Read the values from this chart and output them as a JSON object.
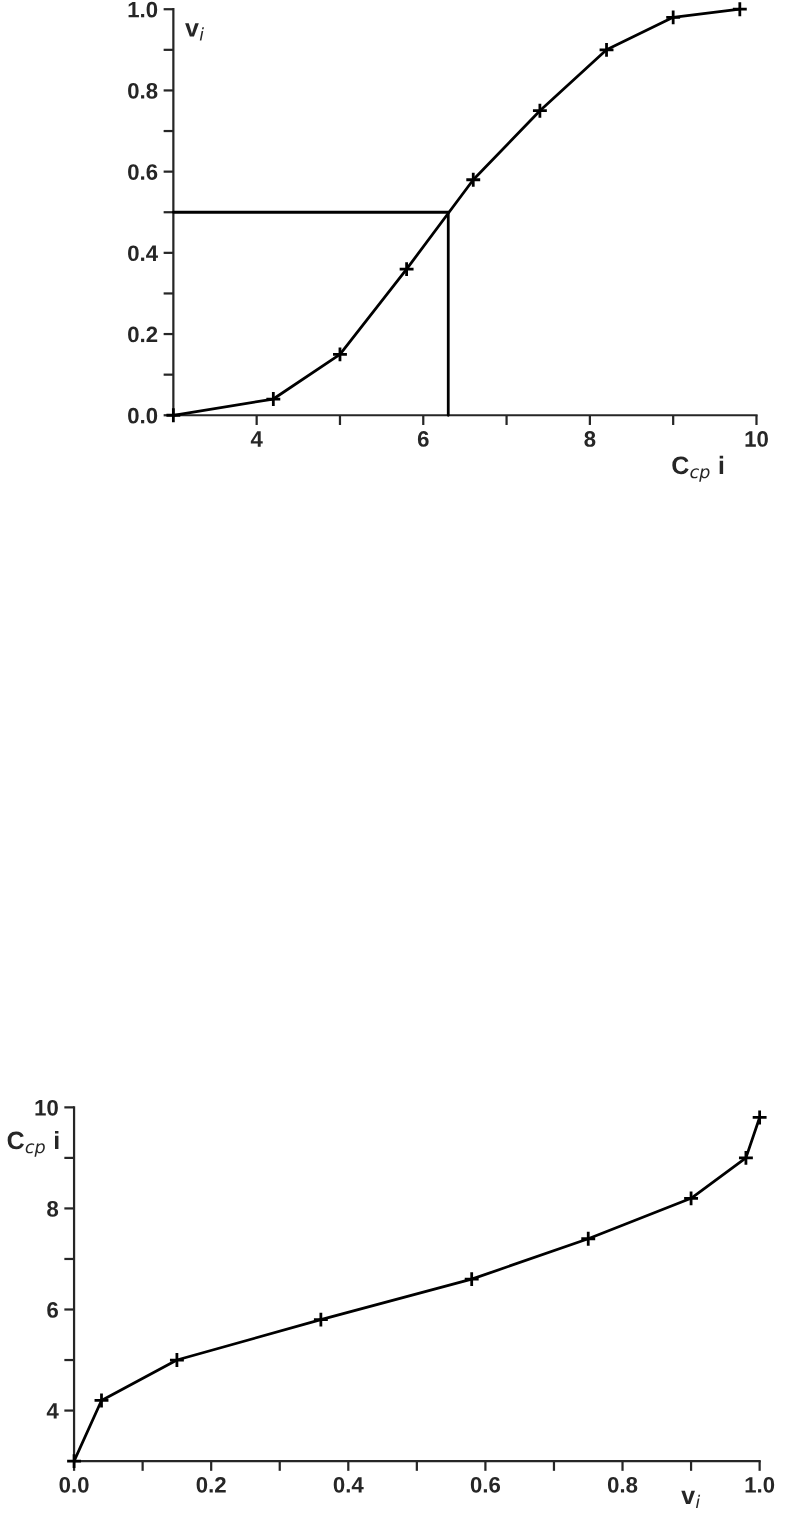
{
  "chart_data": [
    {
      "type": "line",
      "xlabel": "C$_{cp}$ i",
      "ylabel": "v$_{i}$",
      "marker": "cross",
      "line_style": "solid",
      "grid": false,
      "legend": false,
      "xlim": [
        3,
        10
      ],
      "xticks": [
        4,
        {
          "value": 5,
          "label": null
        },
        6,
        {
          "value": 7,
          "label": null
        },
        8,
        {
          "value": 9,
          "label": null
        },
        10
      ],
      "ylim": [
        0,
        1.0
      ],
      "yticks": [
        {
          "value": 0,
          "label": "0.0"
        },
        {
          "value": 0.1,
          "label": null
        },
        0.2,
        {
          "value": 0.3,
          "label": null
        },
        0.4,
        {
          "value": 0.5,
          "label": null
        },
        0.6,
        {
          "value": 0.7,
          "label": null
        },
        0.8,
        {
          "value": 0.9,
          "label": null
        },
        {
          "value": 1.0,
          "label": "1.0"
        }
      ],
      "series": [
        {
          "color": "#000000",
          "x": [
            3,
            4.2,
            5,
            5.8,
            6.6,
            7.4,
            8.2,
            9,
            9.8
          ],
          "values": [
            0,
            0.04,
            0.15,
            0.36,
            0.58,
            0.75,
            0.9,
            0.98,
            1.0
          ]
        },
        {
          "color": "#000000",
          "marker": "none",
          "x": [
            3,
            6.3,
            6.3
          ],
          "values": [
            0.5,
            0.5,
            0
          ]
        }
      ]
    },
    {
      "type": "line",
      "xlabel": "v$_{i}$",
      "ylabel": "C$_{cp}$ i",
      "marker": "cross",
      "line_style": "solid",
      "grid": false,
      "legend": false,
      "xlim": [
        0,
        1.0
      ],
      "xticks": [
        {
          "value": 0,
          "label": "0.0"
        },
        {
          "value": 0.1,
          "label": null
        },
        0.2,
        {
          "value": 0.3,
          "label": null
        },
        0.4,
        {
          "value": 0.5,
          "label": null
        },
        0.6,
        {
          "value": 0.7,
          "label": null
        },
        0.8,
        {
          "value": 0.9,
          "label": null
        },
        {
          "value": 1.0,
          "label": "1.0"
        }
      ],
      "ylim": [
        3,
        10
      ],
      "yticks": [
        4,
        {
          "value": 5,
          "label": null
        },
        6,
        {
          "value": 7,
          "label": null
        },
        8,
        {
          "value": 9,
          "label": null
        },
        10
      ],
      "series": [
        {
          "color": "#000000",
          "x": [
            0,
            0.04,
            0.15,
            0.36,
            0.58,
            0.75,
            0.9,
            0.98,
            1.0
          ],
          "values": [
            3,
            4.2,
            5,
            5.8,
            6.6,
            7.4,
            8.2,
            9,
            9.8
          ]
        }
      ]
    }
  ]
}
